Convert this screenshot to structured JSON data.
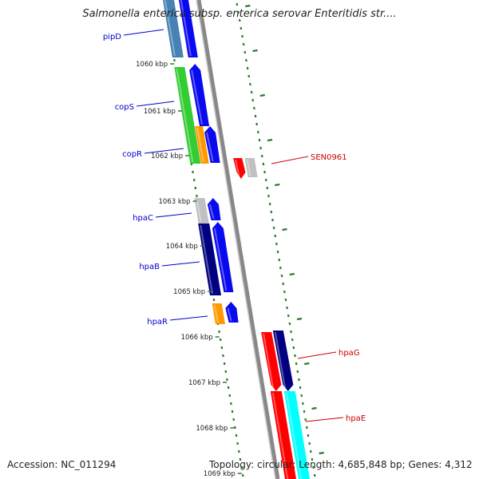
{
  "title": "Salmonella enterica subsp. enterica serovar Enteritidis str....",
  "footer": {
    "accession": "Accession: NC_011294",
    "summary": "Topology: circular; Length: 4,685,848 bp; Genes: 4,312"
  },
  "colors": {
    "label_left": "#0000cc",
    "label_right": "#cc0000",
    "backbone": "#888888",
    "dots": "#2a7a2a",
    "blue": "#0a0af0",
    "navy": "#000080",
    "green": "#33cc33",
    "orange": "#ff9900",
    "gray": "#c0c0c0",
    "red": "#ff0000",
    "cyan": "#00ffff",
    "steelblue": "#4682b4"
  },
  "position_labels": [
    "1060 kbp",
    "1061 kbp",
    "1062 kbp",
    "1063 kbp",
    "1064 kbp",
    "1065 kbp",
    "1066 kbp",
    "1067 kbp",
    "1068 kbp",
    "1069 kbp"
  ],
  "gene_labels": [
    {
      "id": "pipD",
      "text": "pipD",
      "side": "left"
    },
    {
      "id": "copS",
      "text": "copS",
      "side": "left"
    },
    {
      "id": "copR",
      "text": "copR",
      "side": "left"
    },
    {
      "id": "hpaC",
      "text": "hpaC",
      "side": "left"
    },
    {
      "id": "hpaB",
      "text": "hpaB",
      "side": "left"
    },
    {
      "id": "hpaR",
      "text": "hpaR",
      "side": "left"
    },
    {
      "id": "SEN0961",
      "text": "SEN0961",
      "side": "right"
    },
    {
      "id": "hpaG",
      "text": "hpaG",
      "side": "right"
    },
    {
      "id": "hpaE",
      "text": "hpaE",
      "side": "right"
    }
  ]
}
